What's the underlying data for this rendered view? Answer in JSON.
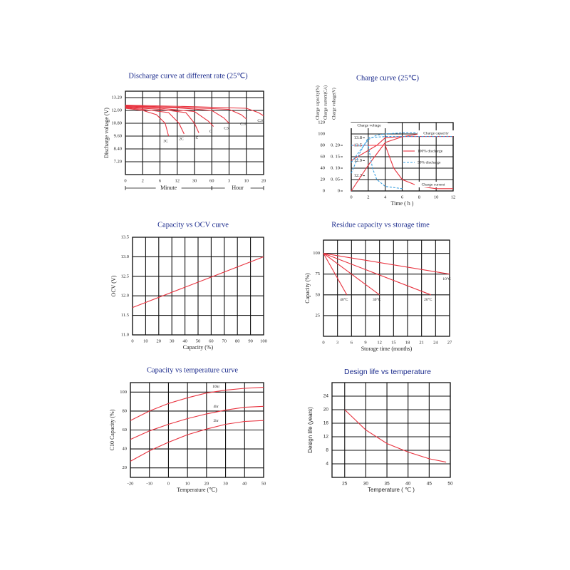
{
  "chart_data": [
    {
      "type": "line",
      "title": "Discharge curve at different rate (25℃)",
      "ylabel": "Discharge voltage (V)",
      "x_groups": [
        "Minute",
        "Hour"
      ],
      "xlim": [
        0,
        8
      ],
      "xticks": [
        0,
        {
          "value": 1,
          "label": "2"
        },
        {
          "value": 2,
          "label": "6"
        },
        {
          "value": 3,
          "label": "12"
        },
        {
          "value": 4,
          "label": "30"
        },
        {
          "value": 5,
          "label": "60"
        },
        {
          "value": 6,
          "label": "3"
        },
        {
          "value": 7,
          "label": "10"
        },
        {
          "value": 8,
          "label": "20"
        }
      ],
      "ylim": [
        6.0,
        13.8
      ],
      "yticks": [
        {
          "value": 7.2,
          "label": "7.20"
        },
        {
          "value": 8.4,
          "label": "8.40"
        },
        {
          "value": 9.6,
          "label": "9.60"
        },
        {
          "value": 10.8,
          "label": "10.80"
        },
        {
          "value": 12.0,
          "label": "12.00"
        },
        {
          "value": 13.2,
          "label": "13.20"
        }
      ],
      "grid": true,
      "series": [
        {
          "name": "3C",
          "color": "#e8333f",
          "x": [
            0,
            1,
            1.8,
            2.3,
            2.5
          ],
          "values": [
            12.2,
            12.0,
            11.6,
            10.8,
            9.6
          ]
        },
        {
          "name": "2C",
          "color": "#e8333f",
          "x": [
            0,
            1,
            2.5,
            3.1,
            3.4
          ],
          "values": [
            12.25,
            12.1,
            11.8,
            10.8,
            9.8
          ]
        },
        {
          "name": "1C",
          "color": "#e8333f",
          "x": [
            0,
            2,
            3.5,
            4.0,
            4.25
          ],
          "values": [
            12.3,
            12.1,
            11.8,
            10.8,
            9.9
          ]
        },
        {
          "name": "C",
          "color": "#e8333f",
          "x": [
            0,
            2,
            4,
            4.8,
            5.1
          ],
          "values": [
            12.35,
            12.2,
            11.9,
            11.0,
            10.5
          ]
        },
        {
          "name": "C3",
          "color": "#e8333f",
          "x": [
            0,
            3,
            5,
            5.7,
            6.0
          ],
          "values": [
            12.4,
            12.25,
            12.0,
            11.3,
            10.8
          ]
        },
        {
          "name": "C10",
          "color": "#e8333f",
          "x": [
            0,
            3,
            6,
            6.7,
            7.0
          ],
          "values": [
            12.45,
            12.3,
            12.1,
            11.6,
            11.2
          ]
        },
        {
          "name": "C20",
          "color": "#e8333f",
          "x": [
            0,
            4,
            7,
            7.7,
            8.0
          ],
          "values": [
            12.5,
            12.35,
            12.2,
            11.8,
            11.5
          ]
        }
      ]
    },
    {
      "type": "line",
      "title": "Charge curve (25℃)",
      "xlabel": "Time ( h )",
      "ylabel": "Charge capacity(%)",
      "y2label": "Charge current(CA)",
      "y3label": "Charge voltage(V)",
      "xlim": [
        0,
        12
      ],
      "xticks": [
        0,
        2,
        4,
        6,
        8,
        10,
        12
      ],
      "ylim": [
        0,
        120
      ],
      "yticks": [
        0,
        20,
        40,
        60,
        80,
        100,
        120
      ],
      "y2lim": [
        0,
        0.3
      ],
      "y2ticks": [
        0,
        {
          "value": 0.05,
          "label": "0. 05"
        },
        {
          "value": 0.1,
          "label": "0. 10"
        },
        {
          "value": 0.15,
          "label": "0. 15"
        },
        {
          "value": 0.2,
          "label": "0. 20"
        }
      ],
      "y3lim": [
        11.7,
        14.4
      ],
      "y3ticks": [
        12.3,
        12.9,
        13.5,
        13.8
      ],
      "grid": true,
      "legend": [
        {
          "name": "100% discharge",
          "color": "#e8333f",
          "dash": false
        },
        {
          "name": "50% discharge",
          "color": "#3aa0e0",
          "dash": true
        }
      ],
      "annotations": [
        "Charge voltage",
        "Charge capacity",
        "Charge current"
      ],
      "series": [
        {
          "legend": 0,
          "axis": "y3",
          "x": [
            0,
            1,
            2,
            3,
            4,
            6,
            12
          ],
          "values": [
            12.9,
            13.1,
            13.3,
            13.5,
            13.8,
            13.85,
            13.85
          ]
        },
        {
          "legend": 0,
          "axis": "y2",
          "x": [
            0,
            4,
            5,
            6,
            8,
            10,
            12
          ],
          "values": [
            0.2,
            0.2,
            0.1,
            0.05,
            0.02,
            0.01,
            0.01
          ]
        },
        {
          "legend": 0,
          "axis": "y",
          "x": [
            0,
            2,
            4,
            6,
            8,
            10,
            12
          ],
          "values": [
            0,
            45,
            85,
            95,
            100,
            102,
            103
          ]
        },
        {
          "legend": 1,
          "axis": "y3",
          "x": [
            0,
            1,
            2,
            4,
            12
          ],
          "values": [
            12.4,
            13.2,
            13.8,
            13.85,
            13.85
          ]
        },
        {
          "legend": 1,
          "axis": "y2",
          "x": [
            0,
            2,
            2.5,
            3,
            4,
            6
          ],
          "values": [
            0.2,
            0.2,
            0.1,
            0.05,
            0.02,
            0.01
          ]
        },
        {
          "legend": 1,
          "axis": "y",
          "x": [
            0,
            1,
            2,
            3,
            4,
            6,
            12
          ],
          "values": [
            50,
            70,
            90,
            98,
            100,
            102,
            103
          ]
        }
      ]
    },
    {
      "type": "line",
      "title": "Capacity vs OCV curve",
      "xlabel": "Capacity (%)",
      "ylabel": "OCV (V)",
      "xlim": [
        0,
        100
      ],
      "xticks": [
        0,
        10,
        20,
        30,
        40,
        50,
        60,
        70,
        80,
        90,
        100
      ],
      "ylim": [
        11.0,
        13.5
      ],
      "yticks": [
        {
          "value": 11.0,
          "label": "11.0"
        },
        11.5,
        {
          "value": 12.0,
          "label": "12.0"
        },
        12.5,
        {
          "value": 13.0,
          "label": "13.0"
        },
        13.5
      ],
      "grid": true,
      "series": [
        {
          "color": "#e8333f",
          "x": [
            0,
            100
          ],
          "values": [
            11.7,
            13.0
          ]
        }
      ]
    },
    {
      "type": "line",
      "title": "Residue capacity vs storage time",
      "xlabel": "Storage time (months)",
      "ylabel": "Capacity (%)",
      "xlim": [
        0,
        27
      ],
      "xticks": [
        0,
        3,
        6,
        9,
        12,
        15,
        18,
        21,
        24,
        27
      ],
      "ylim": [
        0,
        116
      ],
      "yticks": [
        25,
        50,
        75,
        100
      ],
      "grid": true,
      "series": [
        {
          "name": "40°C",
          "color": "#e8333f",
          "x": [
            0,
            5
          ],
          "values": [
            100,
            50
          ]
        },
        {
          "name": "30°C",
          "color": "#e8333f",
          "x": [
            0,
            12
          ],
          "values": [
            100,
            50
          ]
        },
        {
          "name": "20°C",
          "color": "#e8333f",
          "x": [
            0,
            23
          ],
          "values": [
            100,
            50
          ]
        },
        {
          "name": "10°C",
          "color": "#e8333f",
          "x": [
            0,
            27
          ],
          "values": [
            100,
            75
          ]
        }
      ]
    },
    {
      "type": "line",
      "title": "Capacity vs temperature curve",
      "xlabel": "Temperature (℃)",
      "ylabel": "C10 Capacity (%)",
      "xlim": [
        -20,
        50
      ],
      "xticks": [
        -20,
        -10,
        0,
        10,
        20,
        30,
        40,
        50
      ],
      "ylim": [
        10,
        110
      ],
      "yticks": [
        20,
        40,
        60,
        80,
        100
      ],
      "grid": true,
      "label_at": 25,
      "series": [
        {
          "name": "10hr",
          "color": "#e8333f",
          "x": [
            -20,
            -10,
            0,
            10,
            20,
            30,
            40,
            50
          ],
          "values": [
            70,
            80,
            88,
            94,
            99,
            102,
            104,
            105
          ]
        },
        {
          "name": "4hr",
          "color": "#e8333f",
          "x": [
            -20,
            -10,
            0,
            10,
            20,
            30,
            40,
            50
          ],
          "values": [
            50,
            59,
            66,
            72,
            77,
            81,
            84,
            85
          ]
        },
        {
          "name": "2hr",
          "color": "#e8333f",
          "x": [
            -20,
            -10,
            0,
            10,
            20,
            30,
            40,
            50
          ],
          "values": [
            27,
            38,
            47,
            55,
            61,
            66,
            69,
            70
          ]
        }
      ]
    },
    {
      "type": "line",
      "title": "Design  life  vs  temperature",
      "xlabel": "Temperature ( ℃ )",
      "ylabel": "Design life (years)",
      "xlim": [
        22,
        50
      ],
      "xticks": [
        25,
        30,
        35,
        40,
        45,
        50
      ],
      "ylim": [
        0,
        28
      ],
      "yticks": [
        4,
        8,
        12,
        16,
        20,
        24
      ],
      "grid": true,
      "series": [
        {
          "color": "#e8333f",
          "x": [
            25,
            30,
            35,
            40,
            45,
            49
          ],
          "values": [
            20,
            14,
            10,
            7.5,
            5.5,
            4.5
          ]
        }
      ]
    }
  ]
}
